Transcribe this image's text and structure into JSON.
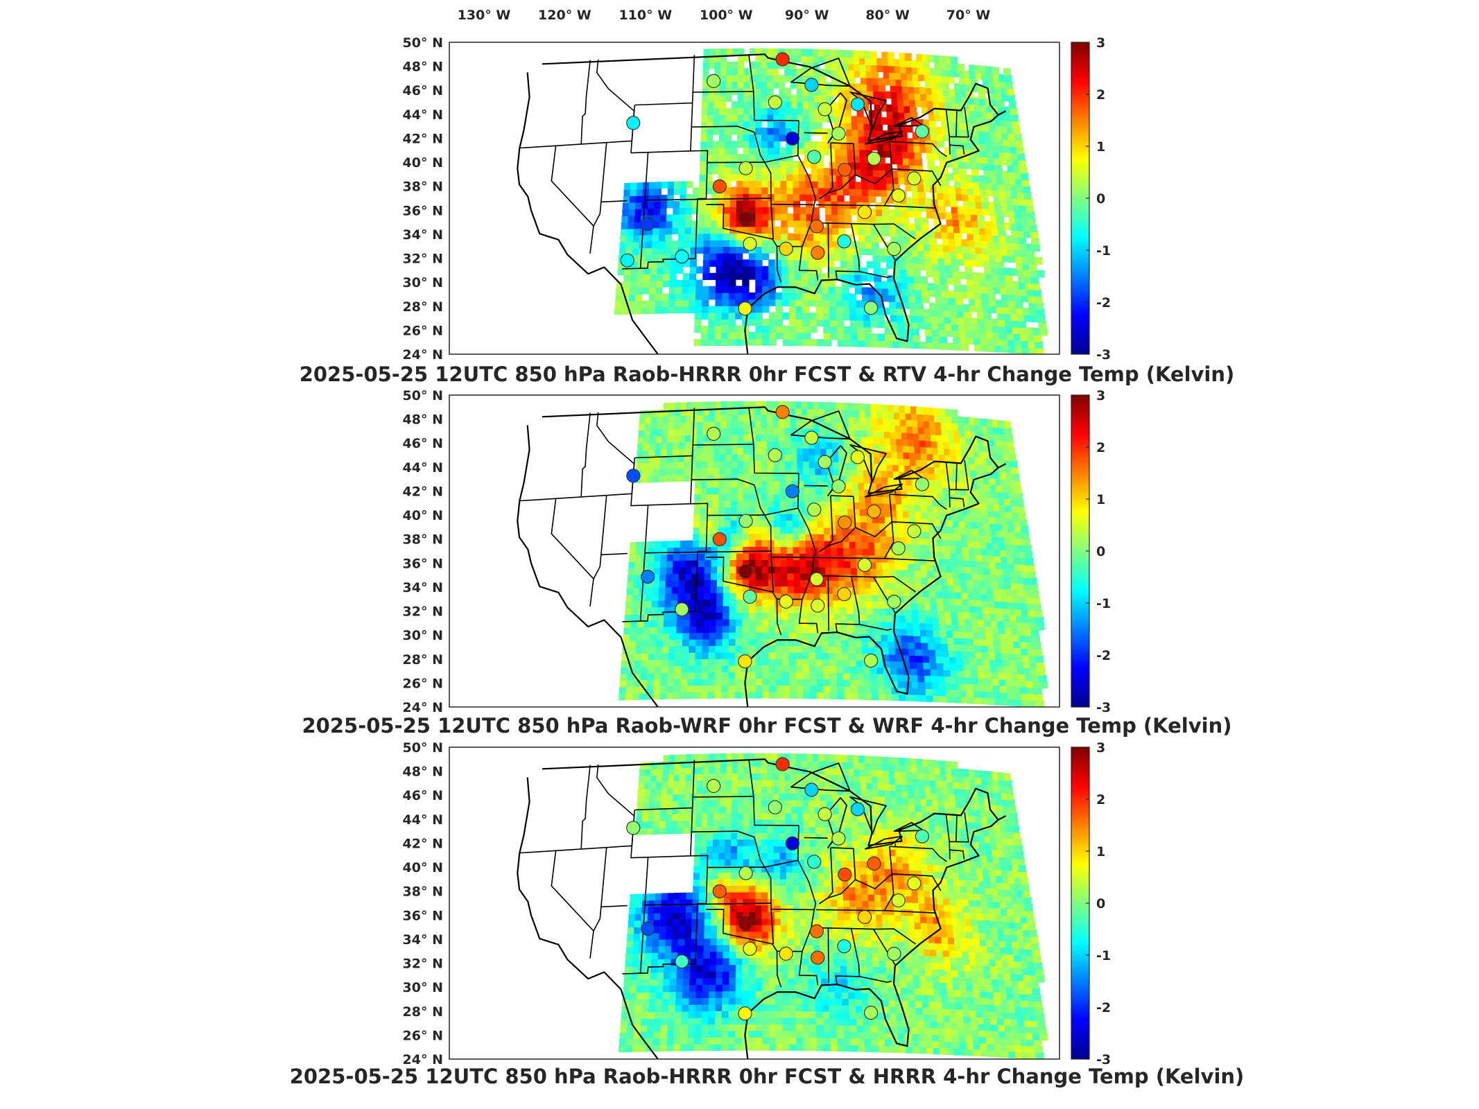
{
  "figure": {
    "lon_ticks": [
      "130° W",
      "120° W",
      "110° W",
      "100° W",
      "90° W",
      "80° W",
      "70° W"
    ],
    "lat_ticks": [
      "50° N",
      "48° N",
      "46° N",
      "44° N",
      "42° N",
      "40° N",
      "38° N",
      "36° N",
      "34° N",
      "32° N",
      "30° N",
      "28° N",
      "26° N",
      "24° N"
    ],
    "colorbar": {
      "ticks": [
        "3",
        "2",
        "1",
        "0",
        "-1",
        "-2",
        "-3"
      ],
      "range": [
        -3,
        3
      ],
      "colormap": "jet",
      "colors": [
        "#00008f",
        "#0000ff",
        "#0080ff",
        "#00ffff",
        "#80ff80",
        "#ffff00",
        "#ff8000",
        "#ff0000",
        "#800000"
      ]
    },
    "map": {
      "projection": "lambert-conformal",
      "lon_range": [
        -130,
        -65
      ],
      "lat_range": [
        24,
        50
      ],
      "background": "#ffffff",
      "coastline_color": "#000000"
    }
  },
  "panels": [
    {
      "title": "2025-05-25 12UTC 850 hPa Raob-HRRR 0hr FCST & RTV 4-hr Change Temp (Kelvin)",
      "field": "RTV 4-hr change",
      "hotspots": [
        {
          "lon": -98.0,
          "lat": 35.3,
          "v": 3.0,
          "r": 4.5
        },
        {
          "lon": -90.5,
          "lat": 36.0,
          "v": 1.8,
          "r": 7.0
        },
        {
          "lon": -84.0,
          "lat": 38.5,
          "v": 1.6,
          "r": 6.0
        },
        {
          "lon": -81.0,
          "lat": 42.0,
          "v": 1.7,
          "r": 7.0
        },
        {
          "lon": -80.0,
          "lat": 46.0,
          "v": 1.5,
          "r": 8.0
        },
        {
          "lon": -74.0,
          "lat": 35.5,
          "v": 1.3,
          "r": 6.0
        },
        {
          "lon": -100.5,
          "lat": 31.0,
          "v": -2.2,
          "r": 6.0
        },
        {
          "lon": -97.0,
          "lat": 30.0,
          "v": -1.8,
          "r": 5.0
        },
        {
          "lon": -109.0,
          "lat": 36.0,
          "v": -2.3,
          "r": 5.0
        },
        {
          "lon": -94.5,
          "lat": 42.0,
          "v": -1.5,
          "r": 4.0
        },
        {
          "lon": -84.0,
          "lat": 29.0,
          "v": -1.3,
          "r": 5.0
        }
      ],
      "raobs": [
        {
          "lon": -97.5,
          "lat": 35.3,
          "v": 3.0
        },
        {
          "lon": -89.5,
          "lat": 34.7,
          "v": 1.6
        },
        {
          "lon": -86.0,
          "lat": 39.5,
          "v": 1.7
        },
        {
          "lon": -100.5,
          "lat": 38.0,
          "v": 1.8
        },
        {
          "lon": -93.0,
          "lat": 48.6,
          "v": 2.0
        },
        {
          "lon": -92.0,
          "lat": 42.0,
          "v": -2.5
        },
        {
          "lon": -108.5,
          "lat": 35.0,
          "v": -1.9
        },
        {
          "lon": -111.0,
          "lat": 43.5,
          "v": -0.8
        },
        {
          "lon": -101.5,
          "lat": 46.8,
          "v": 0.2
        },
        {
          "lon": -94.0,
          "lat": 45.0,
          "v": 0.4
        },
        {
          "lon": -84.0,
          "lat": 45.0,
          "v": -0.9
        },
        {
          "lon": -86.5,
          "lat": 42.5,
          "v": 0.2
        },
        {
          "lon": -89.5,
          "lat": 40.5,
          "v": -0.3
        },
        {
          "lon": -97.5,
          "lat": 39.5,
          "v": 0.4
        },
        {
          "lon": -97.0,
          "lat": 33.2,
          "v": 0.5
        },
        {
          "lon": -104.5,
          "lat": 32.2,
          "v": -0.7
        },
        {
          "lon": -110.5,
          "lat": 32.0,
          "v": -0.8
        },
        {
          "lon": -97.5,
          "lat": 27.8,
          "v": 0.8
        },
        {
          "lon": -93.0,
          "lat": 32.8,
          "v": 1.0
        },
        {
          "lon": -89.5,
          "lat": 32.5,
          "v": 1.5
        },
        {
          "lon": -86.5,
          "lat": 33.5,
          "v": -0.6
        },
        {
          "lon": -84.0,
          "lat": 36.0,
          "v": 0.9
        },
        {
          "lon": -84.0,
          "lat": 28.0,
          "v": 0.1
        },
        {
          "lon": -81.0,
          "lat": 33.0,
          "v": 0.2
        },
        {
          "lon": -78.0,
          "lat": 39.0,
          "v": 0.5
        },
        {
          "lon": -76.5,
          "lat": 43.0,
          "v": -0.2
        },
        {
          "lon": -82.5,
          "lat": 40.5,
          "v": 0.3
        },
        {
          "lon": -80.0,
          "lat": 37.5,
          "v": 0.6
        },
        {
          "lon": -88.0,
          "lat": 44.5,
          "v": 0.4
        },
        {
          "lon": -89.5,
          "lat": 46.5,
          "v": -1.0
        }
      ]
    },
    {
      "title": "2025-05-25 12UTC 850 hPa Raob-WRF 0hr FCST & WRF 4-hr Change Temp (Kelvin)",
      "field": "WRF 4-hr change",
      "hotspots": [
        {
          "lon": -97.5,
          "lat": 35.5,
          "v": 2.8,
          "r": 5.5
        },
        {
          "lon": -91.0,
          "lat": 35.5,
          "v": 2.5,
          "r": 6.0
        },
        {
          "lon": -85.0,
          "lat": 36.5,
          "v": 1.5,
          "r": 6.0
        },
        {
          "lon": -82.0,
          "lat": 41.0,
          "v": 1.2,
          "r": 6.0
        },
        {
          "lon": -77.0,
          "lat": 46.5,
          "v": 1.6,
          "r": 7.0
        },
        {
          "lon": -102.0,
          "lat": 38.5,
          "v": 1.5,
          "r": 3.5
        },
        {
          "lon": -104.0,
          "lat": 35.0,
          "v": -2.5,
          "r": 6.0
        },
        {
          "lon": -102.0,
          "lat": 31.0,
          "v": -2.3,
          "r": 5.0
        },
        {
          "lon": -100.0,
          "lat": 38.0,
          "v": -1.8,
          "r": 4.0
        },
        {
          "lon": -93.0,
          "lat": 38.5,
          "v": -1.6,
          "r": 4.0
        },
        {
          "lon": -80.0,
          "lat": 28.0,
          "v": -1.9,
          "r": 5.5
        },
        {
          "lon": -89.0,
          "lat": 44.5,
          "v": -1.2,
          "r": 4.0
        }
      ],
      "raobs": [
        {
          "lon": -97.5,
          "lat": 35.3,
          "v": 3.0
        },
        {
          "lon": -89.5,
          "lat": 34.7,
          "v": 0.5
        },
        {
          "lon": -86.0,
          "lat": 39.5,
          "v": 1.4
        },
        {
          "lon": -100.5,
          "lat": 38.0,
          "v": 1.8
        },
        {
          "lon": -93.0,
          "lat": 48.6,
          "v": 1.5
        },
        {
          "lon": -92.0,
          "lat": 42.0,
          "v": -1.5
        },
        {
          "lon": -108.5,
          "lat": 35.0,
          "v": -1.5
        },
        {
          "lon": -111.0,
          "lat": 43.5,
          "v": -1.8
        },
        {
          "lon": -101.5,
          "lat": 46.8,
          "v": 0.3
        },
        {
          "lon": -94.0,
          "lat": 45.0,
          "v": 0.3
        },
        {
          "lon": -84.0,
          "lat": 45.0,
          "v": 0.6
        },
        {
          "lon": -86.5,
          "lat": 42.5,
          "v": 0.1
        },
        {
          "lon": -89.5,
          "lat": 40.5,
          "v": 0.3
        },
        {
          "lon": -97.5,
          "lat": 39.5,
          "v": 0.1
        },
        {
          "lon": -97.0,
          "lat": 33.2,
          "v": -0.2
        },
        {
          "lon": -104.5,
          "lat": 32.2,
          "v": 0.2
        },
        {
          "lon": -97.5,
          "lat": 27.8,
          "v": 0.9
        },
        {
          "lon": -93.0,
          "lat": 32.8,
          "v": 0.6
        },
        {
          "lon": -89.5,
          "lat": 32.5,
          "v": 0.5
        },
        {
          "lon": -86.5,
          "lat": 33.5,
          "v": 1.0
        },
        {
          "lon": -84.0,
          "lat": 36.0,
          "v": 0.5
        },
        {
          "lon": -84.0,
          "lat": 28.0,
          "v": 0.3
        },
        {
          "lon": -81.0,
          "lat": 33.0,
          "v": 0.2
        },
        {
          "lon": -78.0,
          "lat": 39.0,
          "v": 0.4
        },
        {
          "lon": -76.5,
          "lat": 43.0,
          "v": 0.1
        },
        {
          "lon": -82.5,
          "lat": 40.5,
          "v": 1.2
        },
        {
          "lon": -80.0,
          "lat": 37.5,
          "v": 0.2
        },
        {
          "lon": -88.0,
          "lat": 44.5,
          "v": 0.2
        },
        {
          "lon": -89.5,
          "lat": 46.5,
          "v": 0.4
        }
      ]
    },
    {
      "title": "2025-05-25 12UTC 850 hPa Raob-HRRR 0hr FCST & HRRR 4-hr Change Temp (Kelvin)",
      "field": "HRRR 4-hr change",
      "hotspots": [
        {
          "lon": -97.5,
          "lat": 35.5,
          "v": 3.0,
          "r": 5.0
        },
        {
          "lon": -100.5,
          "lat": 38.5,
          "v": 1.8,
          "r": 4.0
        },
        {
          "lon": -85.0,
          "lat": 37.0,
          "v": 1.3,
          "r": 6.0
        },
        {
          "lon": -80.0,
          "lat": 40.0,
          "v": 1.2,
          "r": 6.0
        },
        {
          "lon": -76.0,
          "lat": 35.0,
          "v": 1.4,
          "r": 5.0
        },
        {
          "lon": -106.0,
          "lat": 36.0,
          "v": -2.6,
          "r": 6.0
        },
        {
          "lon": -102.0,
          "lat": 31.0,
          "v": -2.5,
          "r": 6.0
        },
        {
          "lon": -100.0,
          "lat": 40.0,
          "v": -2.0,
          "r": 4.5
        },
        {
          "lon": -94.0,
          "lat": 40.0,
          "v": -1.2,
          "r": 4.0
        },
        {
          "lon": -88.0,
          "lat": 30.0,
          "v": -0.9,
          "r": 5.0
        }
      ],
      "raobs": [
        {
          "lon": -97.5,
          "lat": 35.3,
          "v": 2.9
        },
        {
          "lon": -89.5,
          "lat": 34.7,
          "v": 1.6
        },
        {
          "lon": -86.0,
          "lat": 39.5,
          "v": 1.8
        },
        {
          "lon": -100.5,
          "lat": 38.0,
          "v": 1.7
        },
        {
          "lon": -93.0,
          "lat": 48.6,
          "v": 2.0
        },
        {
          "lon": -92.0,
          "lat": 42.0,
          "v": -2.5
        },
        {
          "lon": -108.5,
          "lat": 35.0,
          "v": -1.8
        },
        {
          "lon": -111.0,
          "lat": 43.5,
          "v": 0.1
        },
        {
          "lon": -101.5,
          "lat": 46.8,
          "v": 0.3
        },
        {
          "lon": -94.0,
          "lat": 45.0,
          "v": 0.1
        },
        {
          "lon": -84.0,
          "lat": 45.0,
          "v": -1.0
        },
        {
          "lon": -86.5,
          "lat": 42.5,
          "v": 0.3
        },
        {
          "lon": -89.5,
          "lat": 40.5,
          "v": -0.5
        },
        {
          "lon": -97.5,
          "lat": 39.5,
          "v": 0.3
        },
        {
          "lon": -97.0,
          "lat": 33.2,
          "v": 0.6
        },
        {
          "lon": -104.5,
          "lat": 32.2,
          "v": -0.4
        },
        {
          "lon": -97.5,
          "lat": 27.8,
          "v": 0.8
        },
        {
          "lon": -93.0,
          "lat": 32.8,
          "v": 0.9
        },
        {
          "lon": -89.5,
          "lat": 32.5,
          "v": 1.6
        },
        {
          "lon": -86.5,
          "lat": 33.5,
          "v": -0.6
        },
        {
          "lon": -84.0,
          "lat": 36.0,
          "v": 1.0
        },
        {
          "lon": -84.0,
          "lat": 28.0,
          "v": 0.2
        },
        {
          "lon": -81.0,
          "lat": 33.0,
          "v": 0.2
        },
        {
          "lon": -78.0,
          "lat": 39.0,
          "v": 0.6
        },
        {
          "lon": -76.5,
          "lat": 43.0,
          "v": -0.3
        },
        {
          "lon": -82.5,
          "lat": 40.5,
          "v": 1.7
        },
        {
          "lon": -80.0,
          "lat": 37.5,
          "v": 0.5
        },
        {
          "lon": -88.0,
          "lat": 44.5,
          "v": 0.4
        },
        {
          "lon": -89.5,
          "lat": 46.5,
          "v": -1.0
        }
      ]
    }
  ]
}
